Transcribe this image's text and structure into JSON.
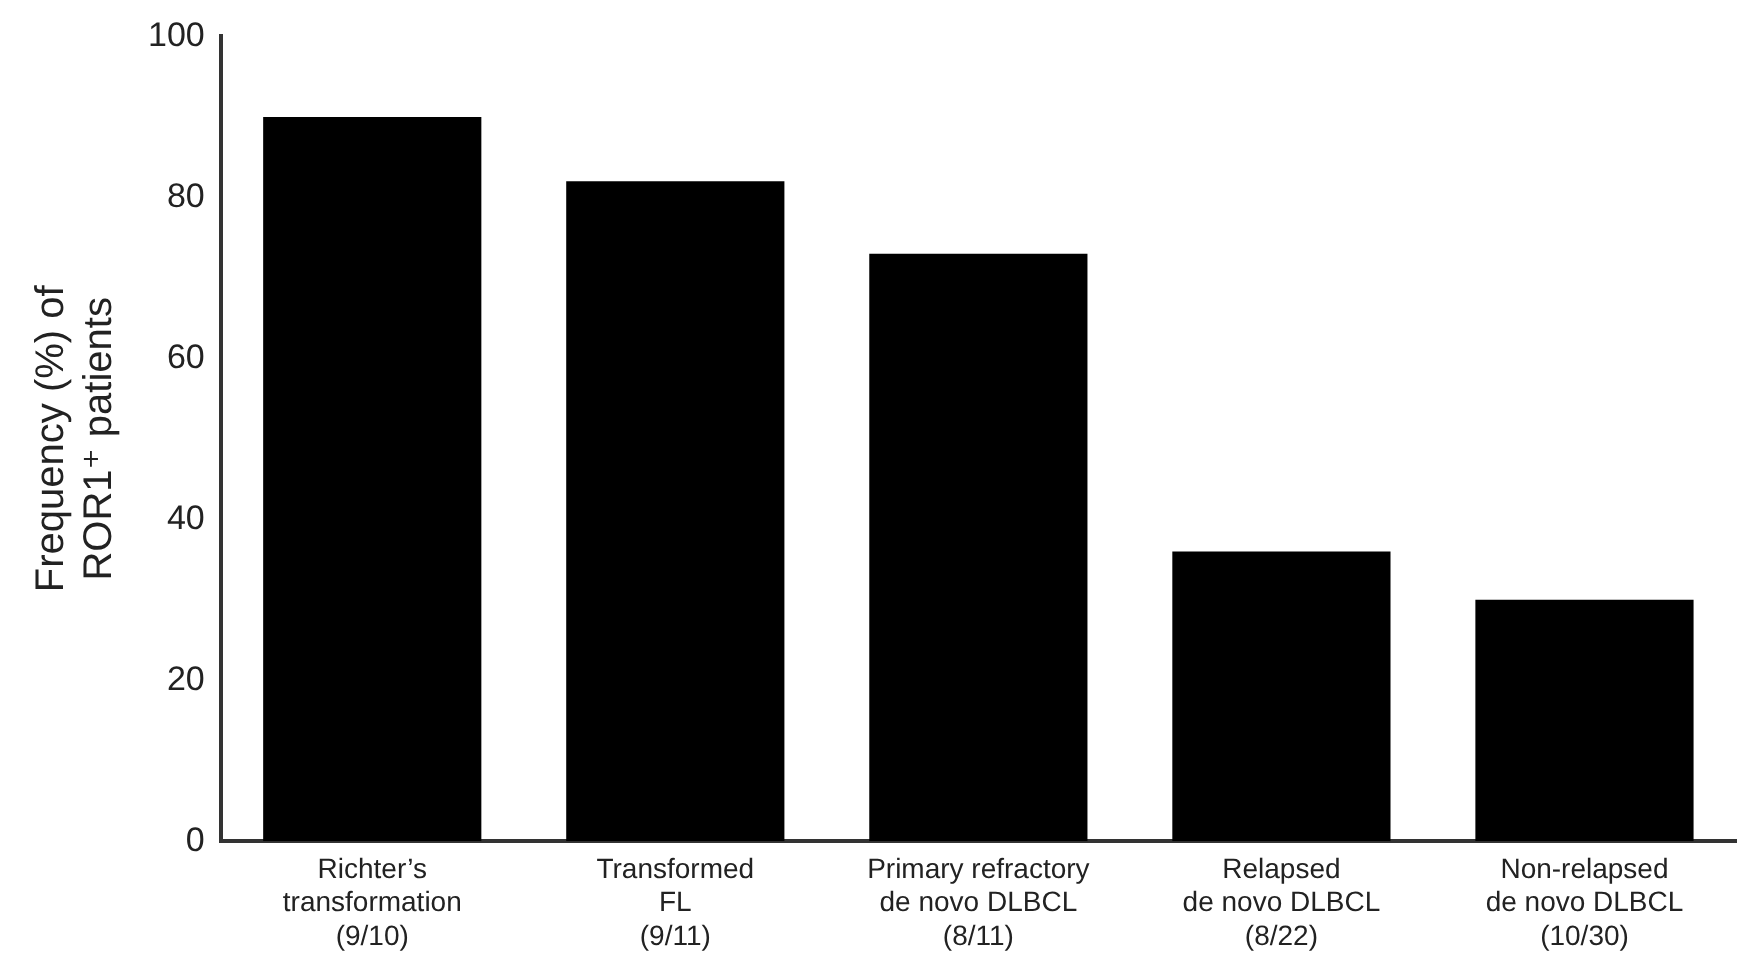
{
  "chart_data": {
    "type": "bar",
    "ylabel": "Frequency (%) of\nROR1⁺ patients",
    "categories": [
      "Richter’s\ntransformation\n(9/10)",
      "Transformed\nFL\n(9/11)",
      "Primary refractory\nde novo DLBCL\n(8/11)",
      "Relapsed\nde novo DLBCL\n(8/22)",
      "Non-relapsed\nde novo DLBCL\n(10/30)"
    ],
    "values": [
      90,
      82,
      73,
      36,
      30
    ],
    "color": "#000000",
    "ylim": [
      0,
      100
    ],
    "yticks": [
      0,
      20,
      40,
      60,
      80,
      100
    ],
    "grid": false,
    "legend": false
  }
}
